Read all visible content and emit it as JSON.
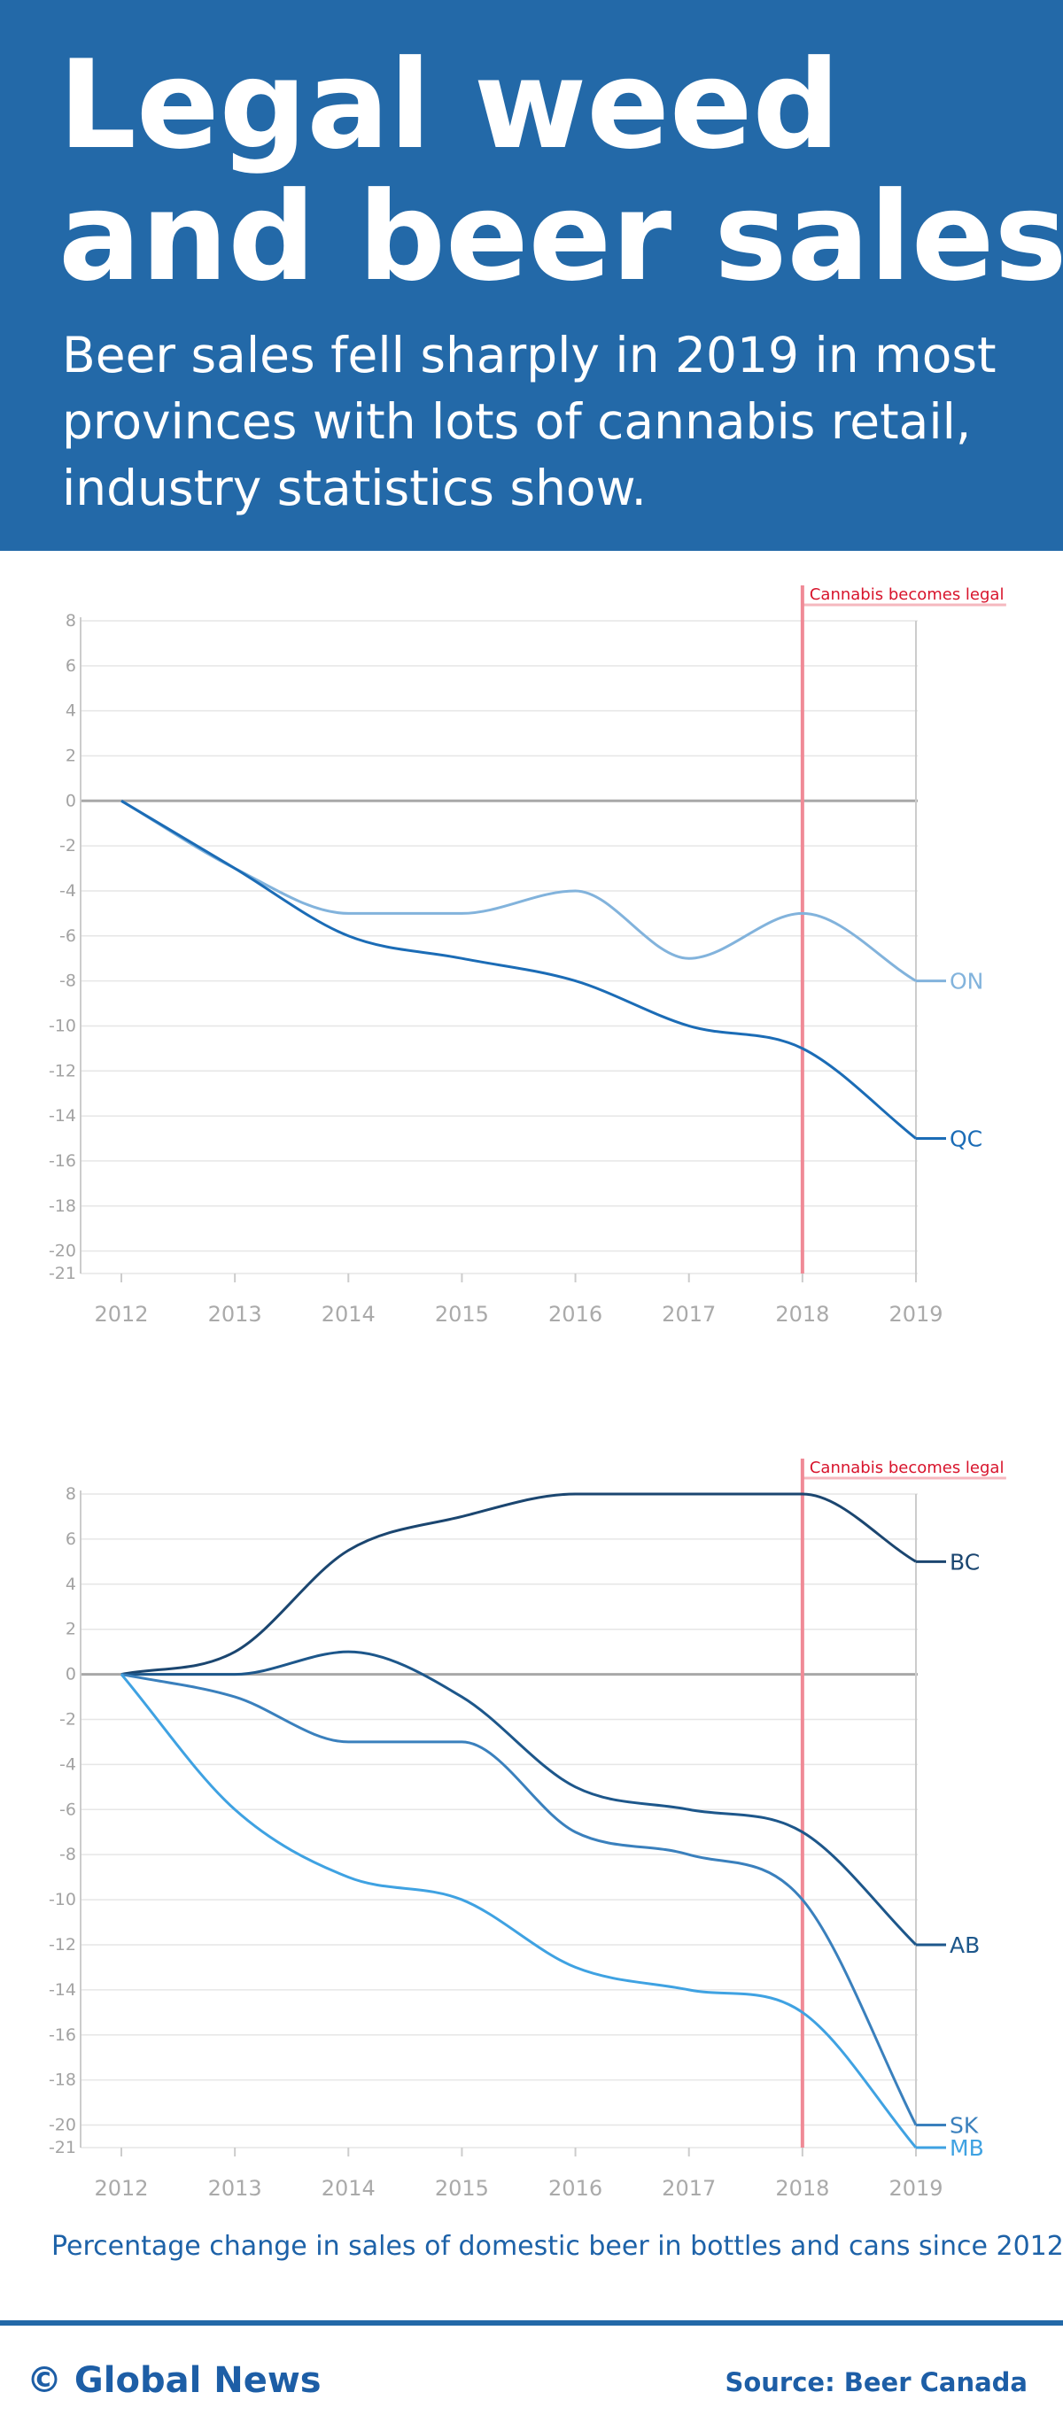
{
  "header": {
    "title": [
      "Legal weed",
      "and beer sales"
    ],
    "subtitle": [
      "Beer sales fell sharply in 2019 in most",
      "provinces with lots of cannabis retail,",
      "industry statistics show."
    ]
  },
  "chart_data": [
    {
      "type": "line",
      "x": [
        2012,
        2013,
        2014,
        2015,
        2016,
        2017,
        2018,
        2019
      ],
      "xlim": [
        2012,
        2019
      ],
      "xticks": [
        2012,
        2013,
        2014,
        2015,
        2016,
        2017,
        2018,
        2019
      ],
      "ylim": [
        -21,
        8
      ],
      "yticks": [
        8,
        6,
        4,
        2,
        0,
        -2,
        -4,
        -6,
        -8,
        -10,
        -12,
        -14,
        -16,
        -18,
        -20,
        -21
      ],
      "grid": true,
      "annotation": {
        "text": "Cannabis becomes legal",
        "x": 2018,
        "color": "#f08a96"
      },
      "series": [
        {
          "name": "ON",
          "color": "#82b3dc",
          "values": [
            0,
            -3,
            -5,
            -5,
            -4,
            -7,
            -5,
            -8
          ]
        },
        {
          "name": "QC",
          "color": "#1b6cb6",
          "values": [
            0,
            -3,
            -6,
            -7,
            -8,
            -10,
            -11,
            -15
          ]
        }
      ]
    },
    {
      "type": "line",
      "x": [
        2012,
        2013,
        2014,
        2015,
        2016,
        2017,
        2018,
        2019
      ],
      "xlim": [
        2012,
        2019
      ],
      "xticks": [
        2012,
        2013,
        2014,
        2015,
        2016,
        2017,
        2018,
        2019
      ],
      "ylim": [
        -21,
        8
      ],
      "yticks": [
        8,
        6,
        4,
        2,
        0,
        -2,
        -4,
        -6,
        -8,
        -10,
        -12,
        -14,
        -16,
        -18,
        -20,
        -21
      ],
      "grid": true,
      "annotation": {
        "text": "Cannabis becomes legal",
        "x": 2018,
        "color": "#f08a96"
      },
      "series": [
        {
          "name": "BC",
          "color": "#1b4670",
          "values": [
            0,
            1,
            5.5,
            7,
            8,
            8,
            8,
            5
          ]
        },
        {
          "name": "AB",
          "color": "#1d578b",
          "values": [
            0,
            0,
            1,
            -1,
            -5,
            -6,
            -7,
            -12
          ]
        },
        {
          "name": "SK",
          "color": "#3a80bd",
          "values": [
            0,
            -1,
            -3,
            -3,
            -7,
            -8,
            -10,
            -20
          ]
        },
        {
          "name": "MB",
          "color": "#3fa2e2",
          "values": [
            0,
            -6,
            -9,
            -10,
            -13,
            -14,
            -15,
            -21
          ]
        }
      ]
    }
  ],
  "caption": "Percentage change in sales of domestic beer in bottles and cans since 2012",
  "footer": {
    "brand": "© Global News",
    "source": "Source: Beer Canada"
  }
}
